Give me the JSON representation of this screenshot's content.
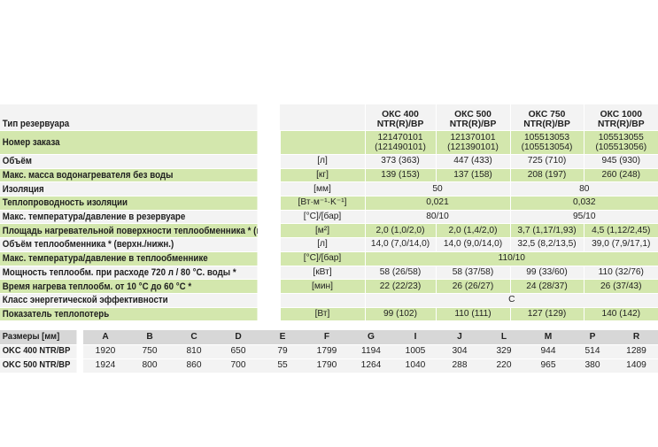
{
  "header": {
    "label": "Тип резервуара",
    "models": [
      "ОКС 400\nNTR(R)/BP",
      "ОКС 500\nNTR(R)/BP",
      "ОКС 750\nNTR(R)/BP",
      "ОКС 1000\nNTR(R)/BP"
    ]
  },
  "rows": [
    {
      "label": "Номер заказа",
      "unit": "",
      "values": [
        "121470101\n(121490101)",
        "121370101\n(121390101)",
        "105513053\n(105513054)",
        "105513055\n(105513056)"
      ]
    },
    {
      "label": "Объём",
      "unit": "[л]",
      "values": [
        "373 (363)",
        "447 (433)",
        "725 (710)",
        "945 (930)"
      ]
    },
    {
      "label": "Макс. масса водонагревателя без воды",
      "unit": "[кг]",
      "values": [
        "139 (153)",
        "137 (158)",
        "208 (197)",
        "260 (248)"
      ]
    },
    {
      "label": "Изоляция",
      "unit": "[мм]",
      "merged": [
        "50",
        "80"
      ]
    },
    {
      "label": "Теплопроводность изоляции",
      "unit": "[Вт·м⁻¹·K⁻¹]",
      "merged": [
        "0,021",
        "0,032"
      ]
    },
    {
      "label": "Макс. температура/давление в резервуаре",
      "unit": "[°C]/[бар]",
      "merged": [
        "80/10",
        "95/10"
      ]
    },
    {
      "label": "Площадь нагревательной поверхности теплообменника * (в./н.)",
      "unit": "[м²]",
      "values": [
        "2,0 (1,0/2,0)",
        "2,0 (1,4/2,0)",
        "3,7 (1,17/1,93)",
        "4,5 (1,12/2,45)"
      ]
    },
    {
      "label": "Объём теплообменника * (верхн./нижн.)",
      "unit": "[л]",
      "values": [
        "14,0 (7,0/14,0)",
        "14,0 (9,0/14,0)",
        "32,5 (8,2/13,5)",
        "39,0 (7,9/17,1)"
      ]
    },
    {
      "label": "Макс. температура/давление в теплообменнике",
      "unit": "[°C]/[бар]",
      "all": "110/10"
    },
    {
      "label": "Мощность теплообм. при расходе 720 л / 80 °C. воды *",
      "unit": "[кВт]",
      "values": [
        "58 (26/58)",
        "58 (37/58)",
        "99 (33/60)",
        "110 (32/76)"
      ]
    },
    {
      "label": "Время нагрева теплообм. от 10 °C до 60 °C *",
      "unit": "[мин]",
      "values": [
        "22 (22/23)",
        "26 (26/27)",
        "24 (28/37)",
        "26 (37/43)"
      ]
    },
    {
      "label": "Класс энергетической эффективности",
      "unit": "",
      "all": "C"
    },
    {
      "label": "Показатель теплопотерь",
      "unit": "[Вт]",
      "values": [
        "99 (102)",
        "110 (111)",
        "127 (129)",
        "140 (142)"
      ]
    }
  ],
  "dimensions": {
    "label": "Размеры [мм]",
    "columns": [
      "A",
      "B",
      "C",
      "D",
      "E",
      "F",
      "G",
      "I",
      "J",
      "L",
      "M",
      "P",
      "R"
    ],
    "rows": [
      {
        "label": "OKC 400 NTR/BP",
        "values": [
          "1920",
          "750",
          "810",
          "650",
          "79",
          "1799",
          "1194",
          "1005",
          "304",
          "329",
          "944",
          "514",
          "1289"
        ]
      },
      {
        "label": "OKC 500 NTR/BP",
        "values": [
          "1924",
          "800",
          "860",
          "700",
          "55",
          "1790",
          "1264",
          "1040",
          "288",
          "220",
          "965",
          "380",
          "1409"
        ]
      }
    ]
  }
}
